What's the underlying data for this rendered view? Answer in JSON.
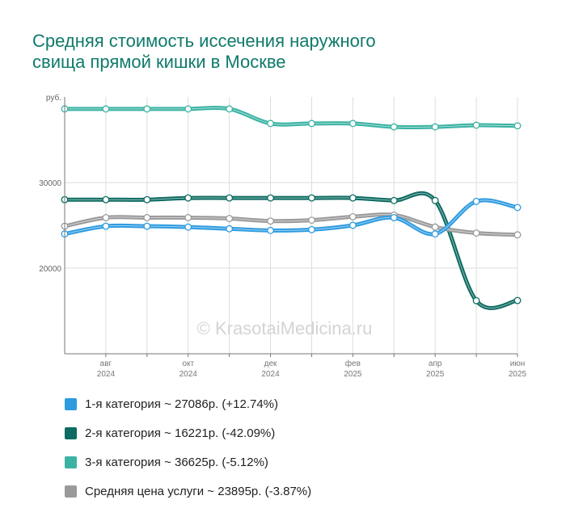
{
  "chart_data": {
    "type": "line",
    "title_lines": [
      "Средняя стоимость иссечения наружного",
      "свища прямой кишки в Москве"
    ],
    "y_unit": "руб.",
    "ylim": [
      10000,
      40000
    ],
    "y_ticks": [
      {
        "value": 20000,
        "label": "20000"
      },
      {
        "value": 30000,
        "label": "30000"
      }
    ],
    "x_labels": [
      {
        "index": 1,
        "line1": "авг",
        "line2": "2024"
      },
      {
        "index": 3,
        "line1": "окт",
        "line2": "2024"
      },
      {
        "index": 5,
        "line1": "дек",
        "line2": "2024"
      },
      {
        "index": 7,
        "line1": "фев",
        "line2": "2025"
      },
      {
        "index": 9,
        "line1": "апр",
        "line2": "2025"
      },
      {
        "index": 11,
        "line1": "июн",
        "line2": "2025"
      }
    ],
    "grid": true,
    "watermark": "© KrasotaiMedicina.ru",
    "series": [
      {
        "name": "3-я категория",
        "color": "#3bb3a3",
        "values": [
          38600,
          38600,
          38600,
          38600,
          38600,
          36900,
          36900,
          36900,
          36500,
          36500,
          36700,
          36625
        ]
      },
      {
        "name": "2-я категория",
        "color": "#0d6b62",
        "values": [
          28000,
          28000,
          28000,
          28200,
          28200,
          28200,
          28200,
          28200,
          27900,
          27900,
          16200,
          16221
        ]
      },
      {
        "name": "Средняя цена услуги",
        "color": "#9a9a9a",
        "values": [
          24900,
          25900,
          25900,
          25900,
          25800,
          25500,
          25600,
          26000,
          26200,
          24800,
          24100,
          23895
        ]
      },
      {
        "name": "1-я категория",
        "color": "#2e9be0",
        "values": [
          24000,
          24900,
          24900,
          24800,
          24600,
          24400,
          24500,
          25000,
          25900,
          24000,
          27800,
          27086
        ]
      }
    ]
  },
  "legend": [
    {
      "label": "1-я категория ~ 27086р. (+12.74%)",
      "color": "#2e9be0"
    },
    {
      "label": "2-я категория ~ 16221р. (-42.09%)",
      "color": "#0d6b62"
    },
    {
      "label": "3-я категория ~ 36625р. (-5.12%)",
      "color": "#3bb3a3"
    },
    {
      "label": "Средняя цена услуги ~ 23895р. (-3.87%)",
      "color": "#9a9a9a"
    }
  ]
}
